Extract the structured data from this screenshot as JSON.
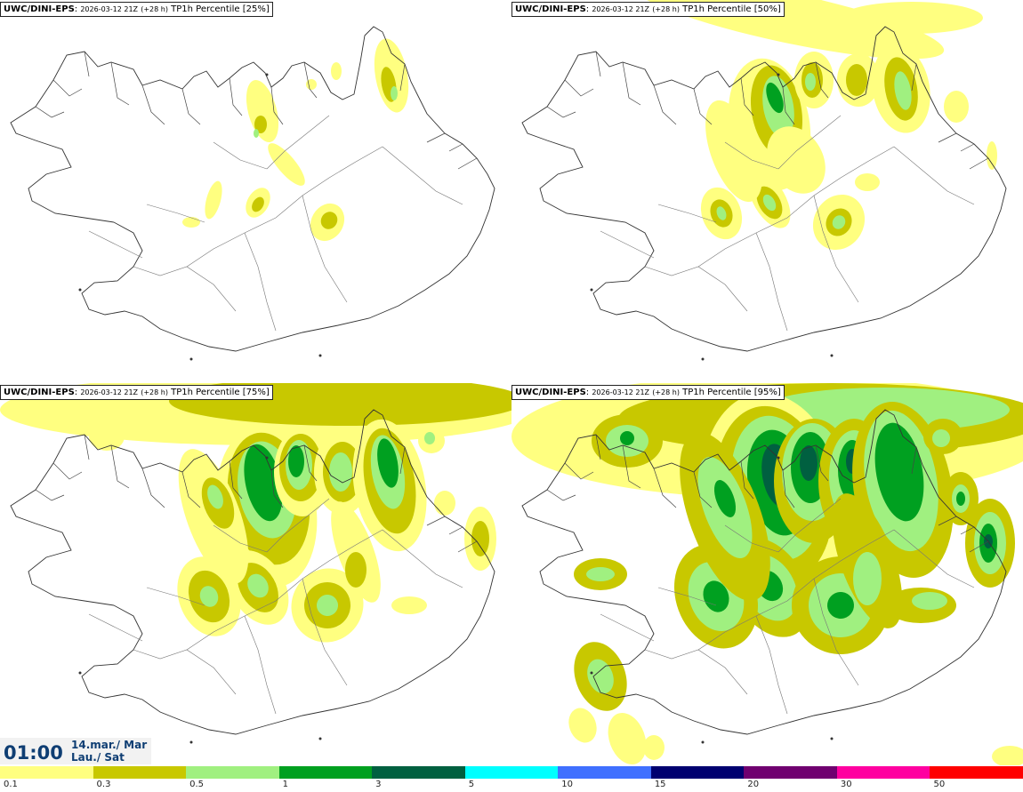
{
  "panels": [
    {
      "model": "UWC/DINI-EPS",
      "init": "2026-03-12 21Z",
      "lead": "(+28 h)",
      "field": "TP1h Percentile [25%]",
      "percentile": 25
    },
    {
      "model": "UWC/DINI-EPS",
      "init": "2026-03-12 21Z",
      "lead": "(+28 h)",
      "field": "TP1h Percentile [50%]",
      "percentile": 50
    },
    {
      "model": "UWC/DINI-EPS",
      "init": "2026-03-12 21Z",
      "lead": "(+28 h)",
      "field": "TP1h Percentile [75%]",
      "percentile": 75
    },
    {
      "model": "UWC/DINI-EPS",
      "init": "2026-03-12 21Z",
      "lead": "(+28 h)",
      "field": "TP1h Percentile [95%]",
      "percentile": 95
    }
  ],
  "valid_time": {
    "time": "01:00",
    "date_line1": "14.mar./ Mar",
    "date_line2": "Lau./ Sat"
  },
  "legend": [
    {
      "label": "0.1",
      "color": "#ffff80"
    },
    {
      "label": "0.3",
      "color": "#c8c800"
    },
    {
      "label": "0.5",
      "color": "#a0f080"
    },
    {
      "label": "1",
      "color": "#00a020"
    },
    {
      "label": "3",
      "color": "#006040"
    },
    {
      "label": "5",
      "color": "#00ffff"
    },
    {
      "label": "10",
      "color": "#4070ff"
    },
    {
      "label": "15",
      "color": "#000070"
    },
    {
      "label": "20",
      "color": "#700070"
    },
    {
      "label": "30",
      "color": "#ff00a0"
    },
    {
      "label": "50",
      "color": "#ff0000"
    }
  ]
}
